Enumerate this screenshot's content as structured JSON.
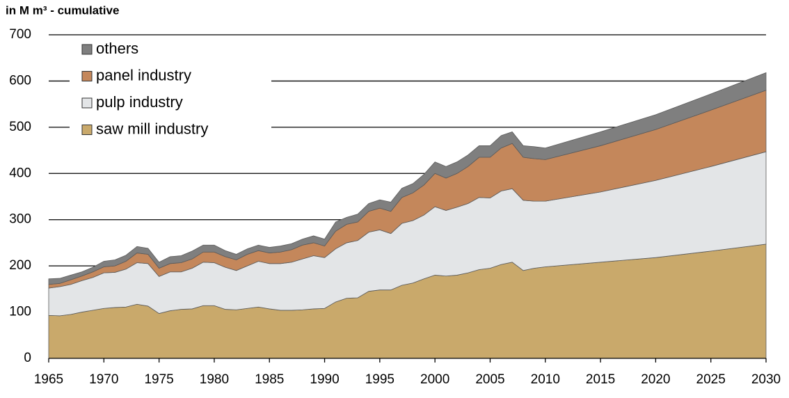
{
  "chart_data": {
    "type": "area",
    "stacked": true,
    "y_label": "in M m³ - cumulative",
    "x": [
      1965,
      1966,
      1967,
      1968,
      1969,
      1970,
      1971,
      1972,
      1973,
      1974,
      1975,
      1976,
      1977,
      1978,
      1979,
      1980,
      1981,
      1982,
      1983,
      1984,
      1985,
      1986,
      1987,
      1988,
      1989,
      1990,
      1991,
      1992,
      1993,
      1994,
      1995,
      1996,
      1997,
      1998,
      1999,
      2000,
      2001,
      2002,
      2003,
      2004,
      2005,
      2006,
      2007,
      2008,
      2009,
      2010,
      2015,
      2020,
      2025,
      2030
    ],
    "series": [
      {
        "name": "saw mill industry",
        "color": "#c9a96b",
        "values": [
          93,
          92,
          95,
          100,
          104,
          108,
          110,
          111,
          117,
          113,
          97,
          103,
          106,
          107,
          114,
          114,
          106,
          105,
          108,
          111,
          107,
          104,
          104,
          105,
          107,
          108,
          122,
          130,
          131,
          145,
          148,
          148,
          158,
          163,
          172,
          180,
          178,
          180,
          185,
          192,
          195,
          203,
          208,
          190,
          195,
          198,
          208,
          218,
          232,
          247
        ]
      },
      {
        "name": "pulp industry",
        "color": "#e3e5e7",
        "values": [
          59,
          63,
          65,
          68,
          71,
          77,
          76,
          82,
          90,
          92,
          80,
          84,
          81,
          88,
          94,
          93,
          91,
          85,
          92,
          99,
          98,
          101,
          104,
          110,
          115,
          110,
          115,
          120,
          124,
          128,
          130,
          122,
          134,
          135,
          138,
          148,
          142,
          147,
          150,
          156,
          152,
          159,
          159,
          152,
          145,
          142,
          152,
          167,
          183,
          200
        ]
      },
      {
        "name": "panel industry",
        "color": "#c4875b",
        "values": [
          8,
          7,
          10,
          10,
          12,
          13,
          14,
          17,
          21,
          20,
          18,
          18,
          20,
          20,
          22,
          23,
          23,
          23,
          25,
          23,
          23,
          25,
          27,
          30,
          28,
          25,
          38,
          40,
          40,
          45,
          47,
          48,
          56,
          60,
          65,
          72,
          70,
          73,
          80,
          87,
          88,
          93,
          98,
          93,
          92,
          90,
          100,
          110,
          122,
          133
        ]
      },
      {
        "name": "others",
        "color": "#7f7f7f",
        "values": [
          12,
          11,
          10,
          9,
          10,
          12,
          13,
          13,
          14,
          13,
          13,
          15,
          15,
          17,
          15,
          15,
          13,
          12,
          12,
          12,
          12,
          13,
          13,
          13,
          15,
          15,
          20,
          15,
          17,
          17,
          18,
          20,
          20,
          20,
          23,
          25,
          25,
          25,
          25,
          25,
          25,
          27,
          25,
          25,
          26,
          25,
          30,
          32,
          35,
          38
        ]
      }
    ],
    "xlim": [
      1965,
      2030
    ],
    "xticks": [
      1965,
      1970,
      1975,
      1980,
      1985,
      1990,
      1995,
      2000,
      2005,
      2010,
      2015,
      2020,
      2025,
      2030
    ],
    "ylim": [
      0,
      700
    ],
    "yticks": [
      0,
      100,
      200,
      300,
      400,
      500,
      600,
      700
    ],
    "grid": true,
    "legend": "upper left"
  }
}
